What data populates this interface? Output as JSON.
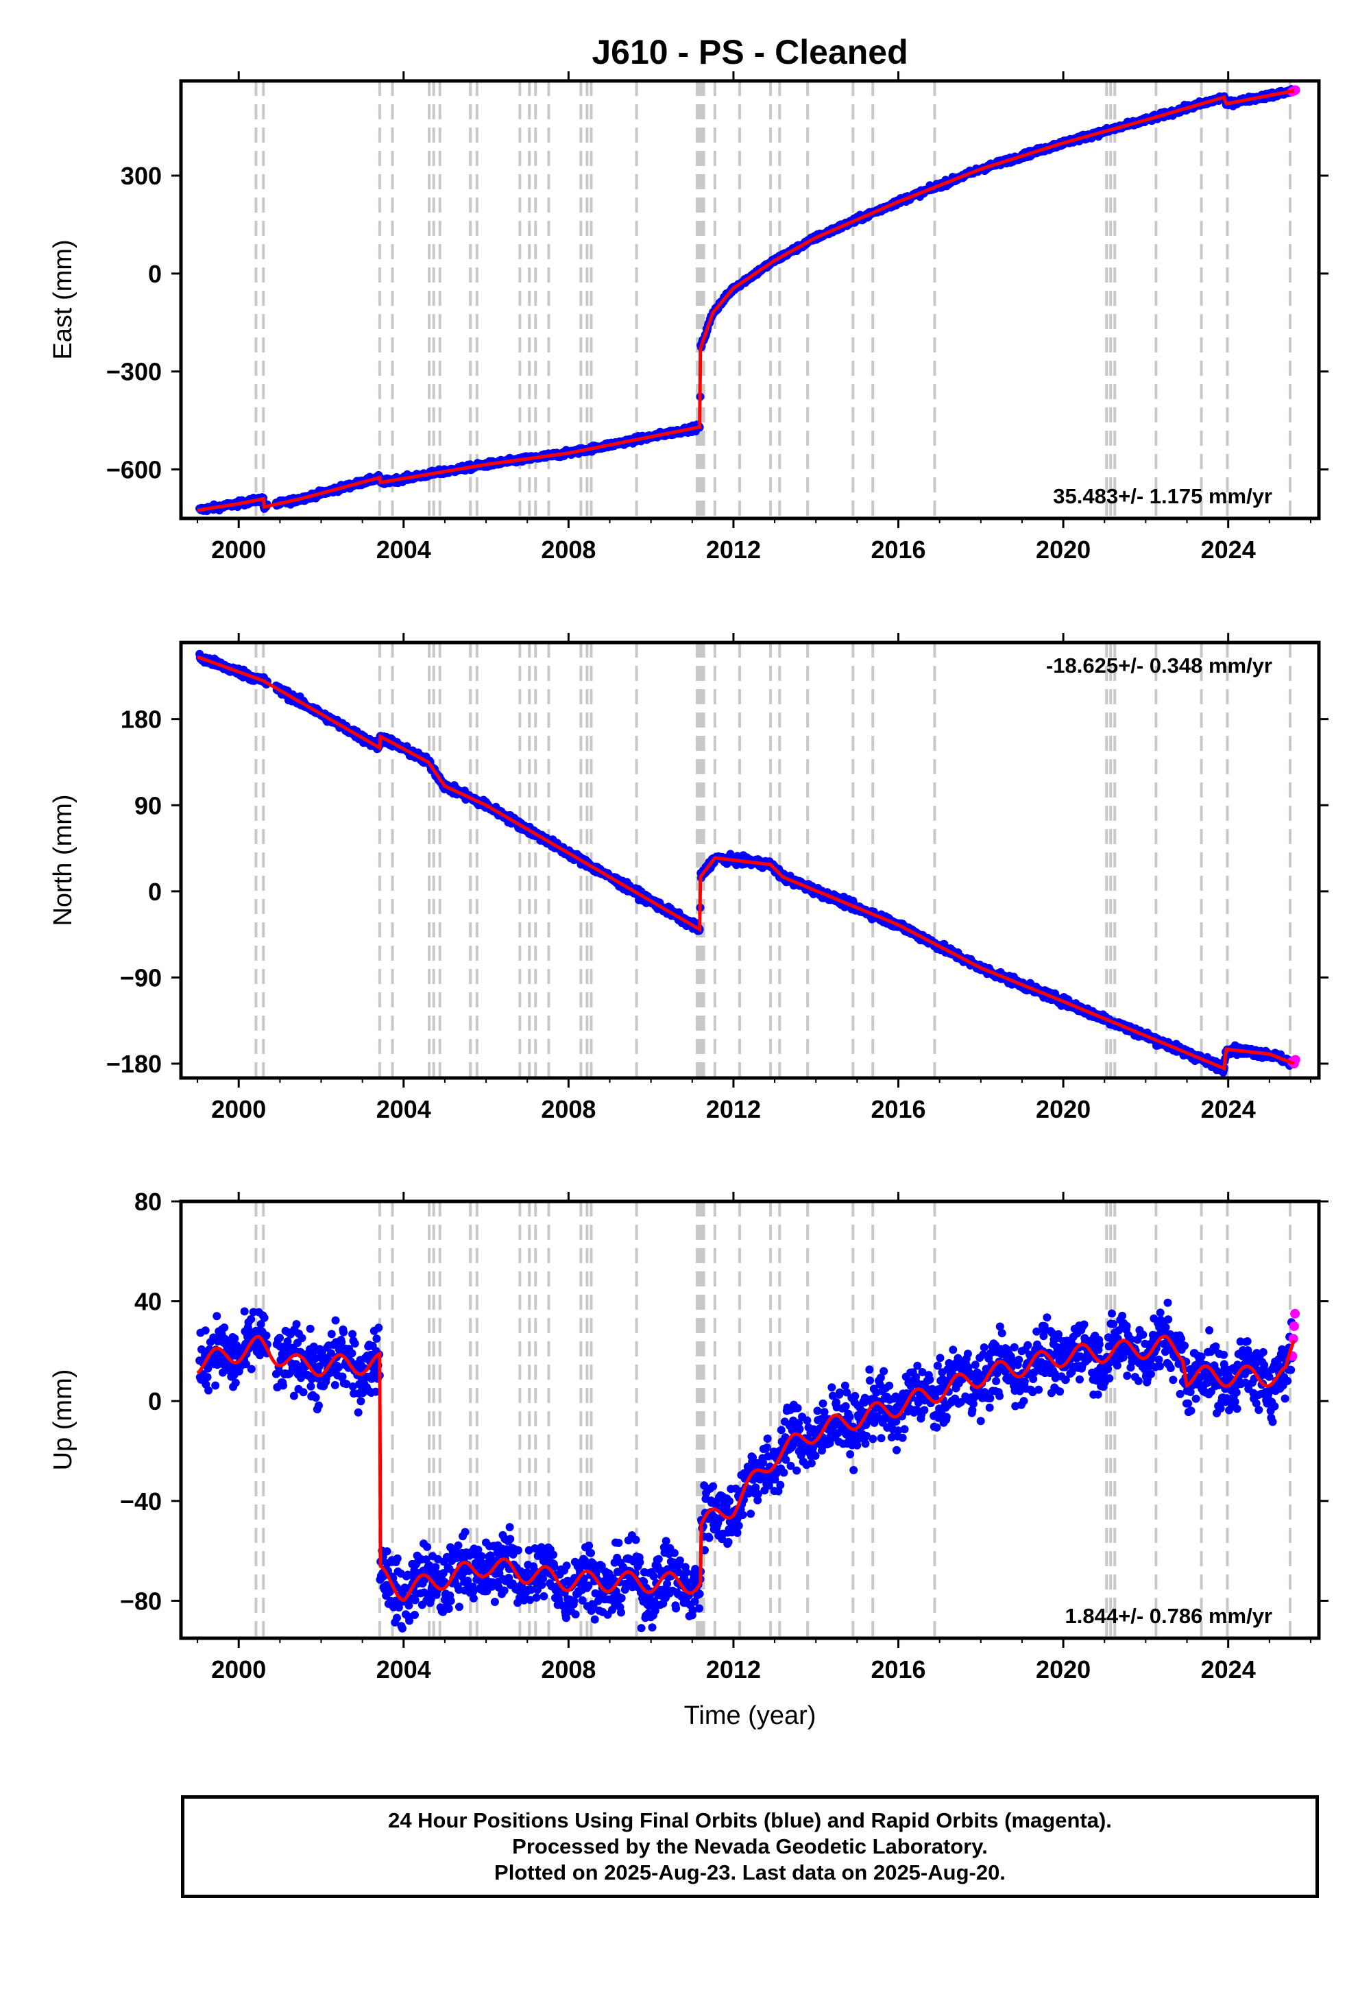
{
  "title": "J610  - PS - Cleaned",
  "xlabel": "Time (year)",
  "colors": {
    "final": "#0000ff",
    "rapid": "#ff00ff",
    "model": "#ff0000",
    "steps": "#c8c8c8"
  },
  "steps": [
    2000.42,
    2000.6,
    2003.42,
    2003.73,
    2004.62,
    2004.73,
    2004.88,
    2005.62,
    2005.78,
    2006.82,
    2007.05,
    2007.2,
    2007.52,
    2008.3,
    2008.45,
    2008.55,
    2009.65,
    2011.12,
    2011.18,
    2011.22,
    2011.28,
    2011.55,
    2012.15,
    2012.9,
    2013.12,
    2013.8,
    2014.9,
    2015.38,
    2016.88,
    2021.05,
    2021.15,
    2021.25,
    2022.25,
    2023.35,
    2023.98,
    2025.5
  ],
  "footer": {
    "line1": "24 Hour Positions Using Final Orbits (blue) and Rapid Orbits (magenta).",
    "line2": "Processed by the Nevada Geodetic Laboratory.",
    "line3": "Plotted on 2025-Aug-23. Last data on 2025-Aug-20."
  },
  "chart_data": [
    {
      "type": "scatter",
      "ylabel": "East (mm)",
      "rate": "35.483+/- 1.175 mm/yr",
      "xlim": [
        1998.6,
        2026.2
      ],
      "ylim": [
        -750,
        590
      ],
      "xticks": [
        2000,
        2004,
        2008,
        2012,
        2016,
        2020,
        2024
      ],
      "yticks": [
        -600,
        -300,
        0,
        300
      ],
      "ytick_labels": [
        "−600",
        "−300",
        "0",
        "300"
      ],
      "noise": 6,
      "model": [
        [
          1999.0,
          -725
        ],
        [
          2000.0,
          -705
        ],
        [
          2000.6,
          -690
        ],
        [
          2000.61,
          -715
        ],
        [
          2001.5,
          -690
        ],
        [
          2003.42,
          -625
        ],
        [
          2003.43,
          -640
        ],
        [
          2006.0,
          -585
        ],
        [
          2008.0,
          -550
        ],
        [
          2011.19,
          -470
        ],
        [
          2011.2,
          -230
        ],
        [
          2011.5,
          -120
        ],
        [
          2012.0,
          -45
        ],
        [
          2013.0,
          40
        ],
        [
          2014.0,
          110
        ],
        [
          2016.0,
          220
        ],
        [
          2018.0,
          320
        ],
        [
          2020.0,
          400
        ],
        [
          2022.0,
          470
        ],
        [
          2023.9,
          540
        ],
        [
          2023.95,
          520
        ],
        [
          2025.6,
          560
        ]
      ],
      "rapid": [
        [
          2025.55,
          557
        ],
        [
          2025.6,
          560
        ],
        [
          2025.63,
          562
        ]
      ]
    },
    {
      "type": "scatter",
      "ylabel": "North (mm)",
      "rate": "-18.625+/- 0.348 mm/yr",
      "xlim": [
        1998.6,
        2026.2
      ],
      "ylim": [
        -195,
        260
      ],
      "xticks": [
        2000,
        2004,
        2008,
        2012,
        2016,
        2020,
        2024
      ],
      "yticks": [
        -180,
        -90,
        0,
        90,
        180
      ],
      "ytick_labels": [
        "−180",
        "−90",
        "0",
        "90",
        "180"
      ],
      "noise": 3,
      "model": [
        [
          1999.0,
          245
        ],
        [
          2000.6,
          220
        ],
        [
          2003.42,
          150
        ],
        [
          2003.43,
          162
        ],
        [
          2004.6,
          135
        ],
        [
          2005.0,
          110
        ],
        [
          2006.0,
          90
        ],
        [
          2008.0,
          40
        ],
        [
          2011.19,
          -40
        ],
        [
          2011.2,
          15
        ],
        [
          2011.55,
          35
        ],
        [
          2012.9,
          28
        ],
        [
          2013.2,
          15
        ],
        [
          2016.0,
          -35
        ],
        [
          2018.0,
          -80
        ],
        [
          2020.0,
          -115
        ],
        [
          2023.9,
          -185
        ],
        [
          2023.95,
          -165
        ],
        [
          2025.0,
          -170
        ],
        [
          2025.6,
          -180
        ]
      ],
      "rapid": [
        [
          2025.55,
          -178
        ],
        [
          2025.6,
          -180
        ],
        [
          2025.63,
          -176
        ]
      ]
    },
    {
      "type": "scatter",
      "ylabel": "Up (mm)",
      "rate": "1.844+/- 0.786 mm/yr",
      "xlim": [
        1998.6,
        2026.2
      ],
      "ylim": [
        -95,
        80
      ],
      "xticks": [
        2000,
        2004,
        2008,
        2012,
        2016,
        2020,
        2024
      ],
      "yticks": [
        -80,
        -40,
        0,
        40,
        80
      ],
      "ytick_labels": [
        "−80",
        "−40",
        "0",
        "40",
        "80"
      ],
      "noise": 9,
      "seasonal": 4,
      "model": [
        [
          1999.0,
          15
        ],
        [
          2000.5,
          22
        ],
        [
          2001.5,
          14
        ],
        [
          2003.42,
          15
        ],
        [
          2003.43,
          -70
        ],
        [
          2004.0,
          -76
        ],
        [
          2006.0,
          -66
        ],
        [
          2008.0,
          -72
        ],
        [
          2011.2,
          -73
        ],
        [
          2011.21,
          -50
        ],
        [
          2012.0,
          -42
        ],
        [
          2013.0,
          -22
        ],
        [
          2014.0,
          -12
        ],
        [
          2016.0,
          -2
        ],
        [
          2018.0,
          10
        ],
        [
          2020.0,
          18
        ],
        [
          2022.5,
          22
        ],
        [
          2022.9,
          20
        ],
        [
          2023.0,
          10
        ],
        [
          2025.4,
          10
        ],
        [
          2025.6,
          22
        ]
      ],
      "rapid": [
        [
          2025.56,
          18
        ],
        [
          2025.58,
          25
        ],
        [
          2025.6,
          30
        ],
        [
          2025.62,
          35
        ]
      ]
    }
  ]
}
